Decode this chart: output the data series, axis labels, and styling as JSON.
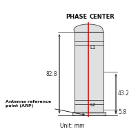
{
  "dim_total": "82.8",
  "dim_upper": "43.2",
  "dim_lower": "5.8",
  "label_L1": "L1",
  "label_L2": "L2",
  "label_arp": "Antenna reference\npoint (ARP)",
  "label_unit": "Unit: mm",
  "bg_color": "#ffffff",
  "antenna_color": "#e0e0e0",
  "antenna_stroke": "#555555",
  "red_line_color": "#cc0000",
  "dim_color": "#333333",
  "text_color": "#111111",
  "phase_text": "PHASE",
  "center_text": "CENTER"
}
